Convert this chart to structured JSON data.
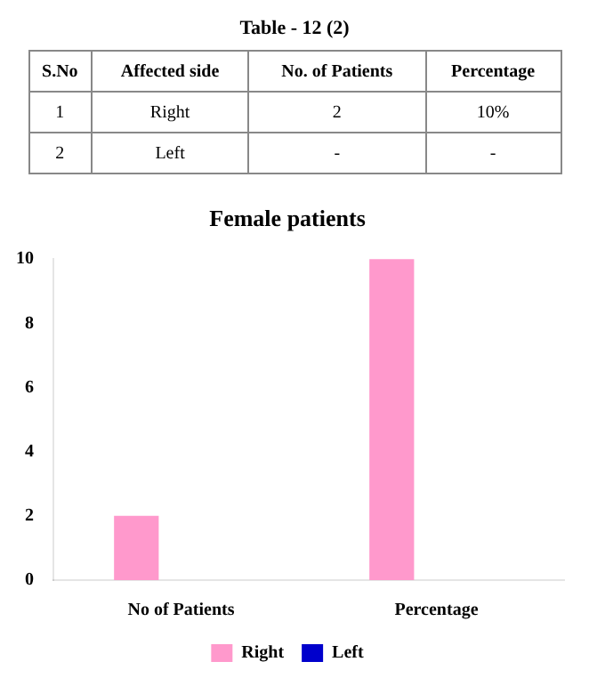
{
  "chart_data": {
    "type": "bar",
    "title": "Female patients",
    "categories": [
      "No of Patients",
      "Percentage"
    ],
    "series": [
      {
        "name": "Right",
        "color": "#ff99cc",
        "values": [
          2,
          10
        ]
      },
      {
        "name": "Left",
        "color": "#0000cc",
        "values": [
          0,
          0
        ]
      }
    ],
    "ylim": [
      0,
      10
    ],
    "yticks": [
      0,
      2,
      4,
      6,
      8,
      10
    ],
    "legend": "bottom",
    "annotations": [
      "Table - 12 (2)",
      "S.No",
      "Affected side",
      "No. of Patients",
      "Percentage",
      "1",
      "Right",
      "2",
      "10%",
      "2",
      "Left",
      "-",
      "-"
    ]
  }
}
